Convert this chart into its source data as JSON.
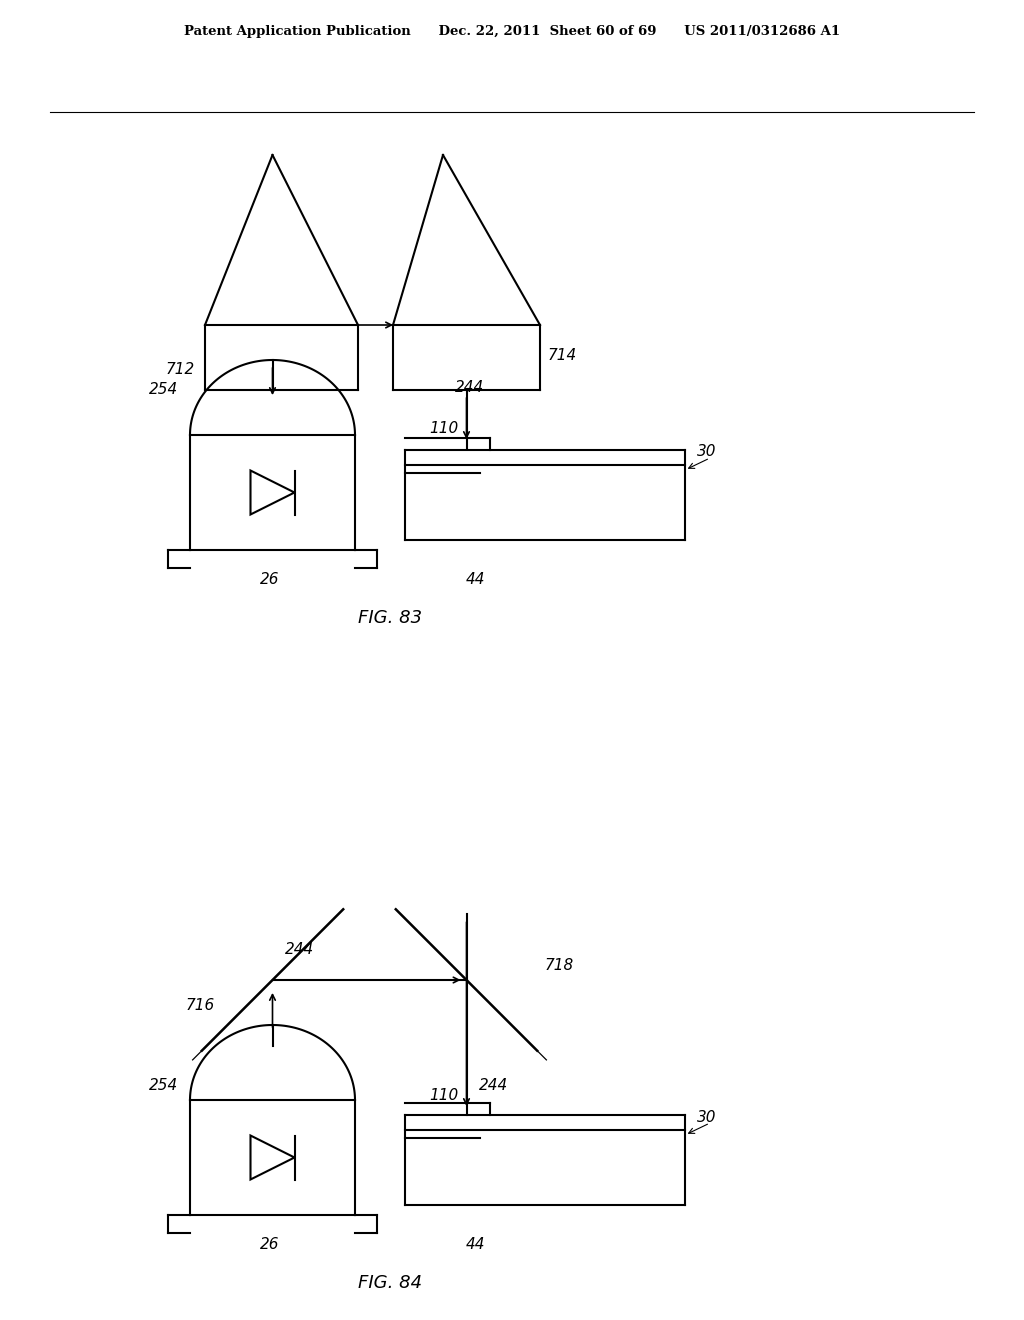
{
  "background_color": "#ffffff",
  "header_text": "Patent Application Publication      Dec. 22, 2011  Sheet 60 of 69      US 2011/0312686 A1",
  "fig83_label": "FIG. 83",
  "fig84_label": "FIG. 84",
  "line_color": "#000000",
  "line_width": 1.5
}
